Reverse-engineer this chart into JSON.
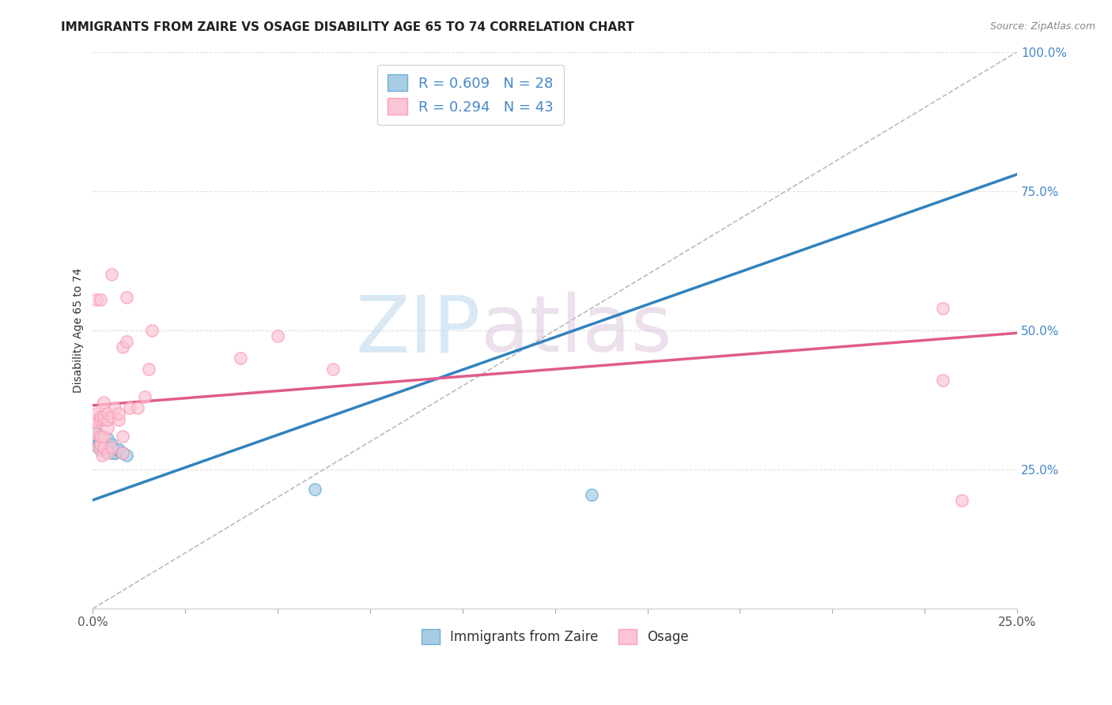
{
  "title": "IMMIGRANTS FROM ZAIRE VS OSAGE DISABILITY AGE 65 TO 74 CORRELATION CHART",
  "source": "Source: ZipAtlas.com",
  "ylabel": "Disability Age 65 to 74",
  "xmin": 0.0,
  "xmax": 0.25,
  "ymin": 0.0,
  "ymax": 1.0,
  "ytick_labels": [
    "",
    "25.0%",
    "50.0%",
    "75.0%",
    "100.0%"
  ],
  "ytick_values": [
    0.0,
    0.25,
    0.5,
    0.75,
    1.0
  ],
  "xtick_labels": [
    "0.0%",
    "",
    "",
    "",
    "",
    "",
    "",
    "",
    "",
    "",
    "25.0%"
  ],
  "xtick_values": [
    0.0,
    0.025,
    0.05,
    0.075,
    0.1,
    0.125,
    0.15,
    0.175,
    0.2,
    0.225,
    0.25
  ],
  "watermark_zip": "ZIP",
  "watermark_atlas": "atlas",
  "legend_zaire_label": "Immigrants from Zaire",
  "legend_osage_label": "Osage",
  "R_zaire": 0.609,
  "N_zaire": 28,
  "R_osage": 0.294,
  "N_osage": 43,
  "color_zaire_fill": "#a8cce4",
  "color_zaire_edge": "#6baed6",
  "color_osage_fill": "#fcc5d5",
  "color_osage_edge": "#fa9fb5",
  "color_line_zaire": "#3182bd",
  "color_line_osage": "#e05c8a",
  "color_ref_line": "#bbbbbb",
  "color_tick_right": "#4488cc",
  "zaire_x": [
    0.0007,
    0.0008,
    0.0009,
    0.001,
    0.001,
    0.0015,
    0.0017,
    0.002,
    0.002,
    0.002,
    0.0025,
    0.0025,
    0.003,
    0.003,
    0.003,
    0.004,
    0.004,
    0.005,
    0.005,
    0.005,
    0.006,
    0.006,
    0.007,
    0.007,
    0.008,
    0.009,
    0.06,
    0.135
  ],
  "zaire_y": [
    0.295,
    0.3,
    0.305,
    0.31,
    0.315,
    0.29,
    0.295,
    0.285,
    0.295,
    0.3,
    0.295,
    0.295,
    0.29,
    0.295,
    0.3,
    0.285,
    0.305,
    0.28,
    0.29,
    0.295,
    0.28,
    0.28,
    0.285,
    0.285,
    0.28,
    0.275,
    0.215,
    0.205
  ],
  "osage_x": [
    0.0005,
    0.0008,
    0.001,
    0.001,
    0.001,
    0.0015,
    0.002,
    0.002,
    0.002,
    0.002,
    0.002,
    0.0025,
    0.003,
    0.003,
    0.003,
    0.003,
    0.003,
    0.004,
    0.004,
    0.004,
    0.004,
    0.005,
    0.005,
    0.005,
    0.006,
    0.007,
    0.007,
    0.008,
    0.008,
    0.008,
    0.009,
    0.009,
    0.01,
    0.012,
    0.014,
    0.015,
    0.016,
    0.04,
    0.05,
    0.065,
    0.23,
    0.23,
    0.235
  ],
  "osage_y": [
    0.315,
    0.335,
    0.34,
    0.35,
    0.555,
    0.29,
    0.295,
    0.31,
    0.34,
    0.345,
    0.555,
    0.275,
    0.29,
    0.31,
    0.34,
    0.345,
    0.37,
    0.28,
    0.325,
    0.34,
    0.35,
    0.29,
    0.345,
    0.6,
    0.36,
    0.34,
    0.35,
    0.28,
    0.31,
    0.47,
    0.48,
    0.56,
    0.36,
    0.36,
    0.38,
    0.43,
    0.5,
    0.45,
    0.49,
    0.43,
    0.54,
    0.41,
    0.195
  ],
  "zaire_trend_x0": 0.0,
  "zaire_trend_x1": 0.25,
  "zaire_trend_y0": 0.195,
  "zaire_trend_y1": 0.78,
  "osage_trend_x0": 0.0,
  "osage_trend_x1": 0.25,
  "osage_trend_y0": 0.365,
  "osage_trend_y1": 0.495,
  "ref_line_x0": 0.0,
  "ref_line_x1": 0.25,
  "ref_line_y0": 0.0,
  "ref_line_y1": 1.0,
  "background_color": "#ffffff",
  "grid_color": "#e0e0e0",
  "title_fontsize": 11,
  "axis_label_fontsize": 10,
  "tick_fontsize": 11,
  "legend_fontsize": 13
}
